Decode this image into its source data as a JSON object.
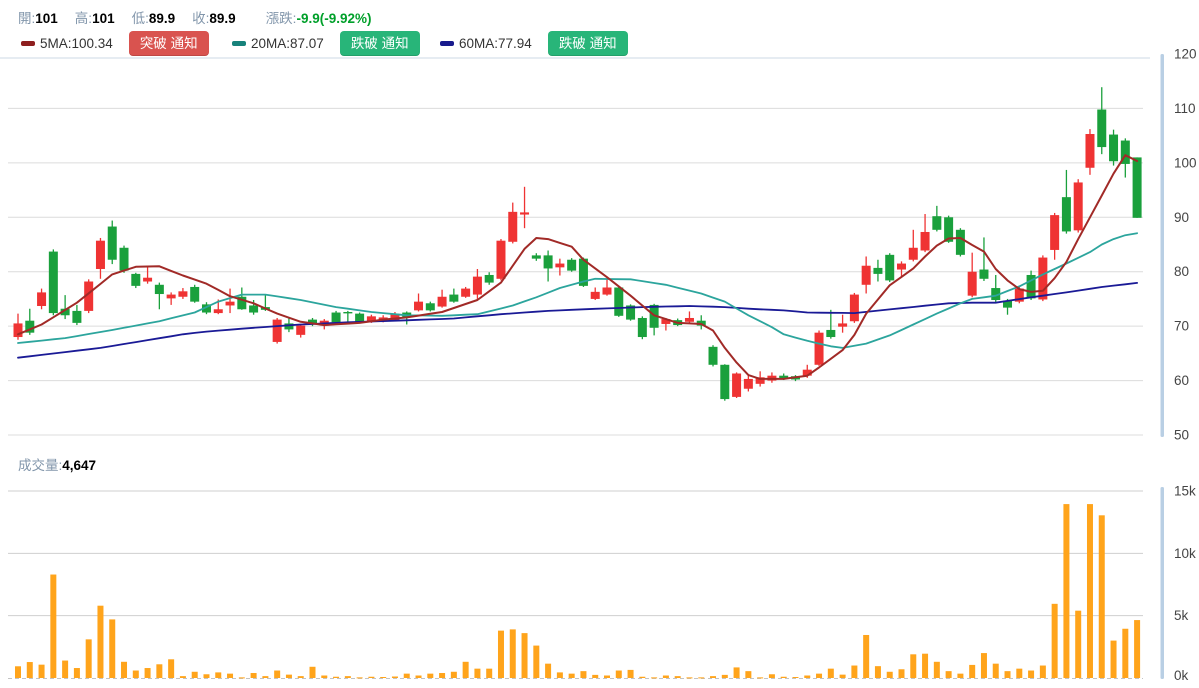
{
  "header": {
    "open_label": "開:",
    "open_value": "101",
    "high_label": "高:",
    "high_value": "101",
    "low_label": "低:",
    "low_value": "89.9",
    "close_label": "收:",
    "close_value": "89.9",
    "change_label": "漲跌:",
    "change_value": "-9.9(-9.92%)"
  },
  "legend": {
    "ma5_label": "5MA:100.34",
    "ma5_alert": "突破 通知",
    "ma20_label": "20MA:87.07",
    "ma20_alert": "跌破 通知",
    "ma60_label": "60MA:77.94",
    "ma60_alert": "跌破 通知"
  },
  "volume": {
    "label": "成交量:",
    "value": "4,647"
  },
  "colors": {
    "up": "#ef3333",
    "down": "#1aa03c",
    "ma5": "#a12a27",
    "ma20": "#2ca59d",
    "ma60": "#1a1a96",
    "ma5_swatch": "#8e1f1f",
    "ma20_swatch": "#17827b",
    "ma60_swatch": "#181a8d",
    "volume_bar": "#ffa41b",
    "btn_breakout": "#d9534f",
    "btn_breakdown": "#28b579",
    "label_blue": "#8296ab",
    "change_green": "#00a02a",
    "grid": "#dcdcdc",
    "grid_vol": "#cfcfcf",
    "baseline_dash": "#c3c3c3",
    "axis_strip": "#b9cfe4",
    "tick_text": "#444444",
    "separator": "#ccd9e4"
  },
  "chart_data": {
    "type": "candlestick+volume",
    "title": "",
    "price_axis": {
      "ticks": [
        120,
        110,
        100,
        90,
        80,
        70,
        60,
        50
      ],
      "min": 50,
      "max": 120,
      "grid": true,
      "position": "right"
    },
    "volume_axis": {
      "ticks": [
        "15k",
        "10k",
        "5k",
        "0k"
      ],
      "tick_values": [
        15,
        10,
        5,
        0
      ],
      "min": 0,
      "max": 15,
      "unit": "thousand_shares",
      "position": "right"
    },
    "last_values": {
      "open": 101,
      "high": 101,
      "low": 89.9,
      "close": 89.9,
      "change": -9.9,
      "change_pct": -9.92,
      "volume": 4647,
      "ma5": 100.34,
      "ma20": 87.07,
      "ma60": 77.94
    },
    "candles_format": [
      "open",
      "high",
      "low",
      "close",
      "volume_k"
    ],
    "candles": [
      [
        68.0,
        72.3,
        67.5,
        70.5,
        0.94
      ],
      [
        71.0,
        73.2,
        68.4,
        68.8,
        1.28
      ],
      [
        73.7,
        76.9,
        73.1,
        76.2,
        1.07
      ],
      [
        83.7,
        84.1,
        72.0,
        72.4,
        8.3
      ],
      [
        73.2,
        75.7,
        71.3,
        72.0,
        1.4
      ],
      [
        72.8,
        73.9,
        70.2,
        70.6,
        0.8
      ],
      [
        72.8,
        78.6,
        72.4,
        78.2,
        3.1
      ],
      [
        80.5,
        86.2,
        78.7,
        85.7,
        5.8
      ],
      [
        88.3,
        89.4,
        81.4,
        82.2,
        4.7
      ],
      [
        84.4,
        84.8,
        79.8,
        80.2,
        1.3
      ],
      [
        79.6,
        79.8,
        77.0,
        77.4,
        0.6
      ],
      [
        78.2,
        80.9,
        77.8,
        78.9,
        0.8
      ],
      [
        77.6,
        78.0,
        73.1,
        75.9,
        1.1
      ],
      [
        75.1,
        76.2,
        73.9,
        75.8,
        1.5
      ],
      [
        75.4,
        77.0,
        75.0,
        76.4,
        0.15
      ],
      [
        77.2,
        77.6,
        74.3,
        74.5,
        0.5
      ],
      [
        74.0,
        74.4,
        72.2,
        72.5,
        0.3
      ],
      [
        72.4,
        74.9,
        72.2,
        73.1,
        0.45
      ],
      [
        73.8,
        76.9,
        72.4,
        74.5,
        0.35
      ],
      [
        75.4,
        77.1,
        73.0,
        73.1,
        0.05
      ],
      [
        73.8,
        74.8,
        72.1,
        72.5,
        0.4
      ],
      [
        73.5,
        75.7,
        72.8,
        73.0,
        0.15
      ],
      [
        67.1,
        71.5,
        66.8,
        71.2,
        0.6
      ],
      [
        70.5,
        71.6,
        68.9,
        69.4,
        0.27
      ],
      [
        68.4,
        70.4,
        67.9,
        70.1,
        0.15
      ],
      [
        71.2,
        71.5,
        70.0,
        70.3,
        0.9
      ],
      [
        70.1,
        71.3,
        69.4,
        71.0,
        0.2
      ],
      [
        72.5,
        72.8,
        70.5,
        70.7,
        0.1
      ],
      [
        72.6,
        72.8,
        70.8,
        72.4,
        0.15
      ],
      [
        72.3,
        72.5,
        70.5,
        70.7,
        0.05
      ],
      [
        70.9,
        72.1,
        70.6,
        71.8,
        0.1
      ],
      [
        71.0,
        72.0,
        70.7,
        71.6,
        0.08
      ],
      [
        71.1,
        72.6,
        70.9,
        72.3,
        0.12
      ],
      [
        72.5,
        72.7,
        70.3,
        71.6,
        0.35
      ],
      [
        72.9,
        76.0,
        72.7,
        74.5,
        0.2
      ],
      [
        74.2,
        74.5,
        72.7,
        72.9,
        0.35
      ],
      [
        73.6,
        76.7,
        73.4,
        75.4,
        0.4
      ],
      [
        75.8,
        76.9,
        74.3,
        74.5,
        0.5
      ],
      [
        75.4,
        77.2,
        75.2,
        76.9,
        1.3
      ],
      [
        75.8,
        80.5,
        75.0,
        79.1,
        0.75
      ],
      [
        79.4,
        79.9,
        77.6,
        78.0,
        0.75
      ],
      [
        78.7,
        86.0,
        78.4,
        85.7,
        3.8
      ],
      [
        85.5,
        92.7,
        85.2,
        91.0,
        3.9
      ],
      [
        90.5,
        95.6,
        88.0,
        90.9,
        3.6
      ],
      [
        83.0,
        83.4,
        82.0,
        82.4,
        2.6
      ],
      [
        83.0,
        83.9,
        78.2,
        80.6,
        1.15
      ],
      [
        80.8,
        82.4,
        79.3,
        81.5,
        0.45
      ],
      [
        82.2,
        82.5,
        80.0,
        80.2,
        0.35
      ],
      [
        82.4,
        82.6,
        77.2,
        77.4,
        0.55
      ],
      [
        75.0,
        77.1,
        74.8,
        76.3,
        0.25
      ],
      [
        75.8,
        78.7,
        75.6,
        77.1,
        0.2
      ],
      [
        77.1,
        77.3,
        71.7,
        71.9,
        0.6
      ],
      [
        73.8,
        74.0,
        71.0,
        71.2,
        0.65
      ],
      [
        71.5,
        71.8,
        67.6,
        68.0,
        0.1
      ],
      [
        73.9,
        74.1,
        68.3,
        69.7,
        0.05
      ],
      [
        70.4,
        71.5,
        69.2,
        71.3,
        0.2
      ],
      [
        71.1,
        71.4,
        70.0,
        70.2,
        0.15
      ],
      [
        70.8,
        72.7,
        70.5,
        71.5,
        0.05
      ],
      [
        71.0,
        72.0,
        69.4,
        70.1,
        0.05
      ],
      [
        66.2,
        66.5,
        62.6,
        62.9,
        0.15
      ],
      [
        62.9,
        63.0,
        56.3,
        56.6,
        0.25
      ],
      [
        57.0,
        61.5,
        56.8,
        61.3,
        0.85
      ],
      [
        58.5,
        60.9,
        58.0,
        60.3,
        0.55
      ],
      [
        59.4,
        61.7,
        58.9,
        60.6,
        0.05
      ],
      [
        60.0,
        61.5,
        59.6,
        60.9,
        0.3
      ],
      [
        60.9,
        61.3,
        60.1,
        60.4,
        0.1
      ],
      [
        60.8,
        61.0,
        59.9,
        60.2,
        0.08
      ],
      [
        60.9,
        62.9,
        60.5,
        62.0,
        0.2
      ],
      [
        62.9,
        69.2,
        62.7,
        68.8,
        0.35
      ],
      [
        69.3,
        73.0,
        67.7,
        68.0,
        0.75
      ],
      [
        69.9,
        72.1,
        68.8,
        70.5,
        0.27
      ],
      [
        70.9,
        76.1,
        70.6,
        75.8,
        1.0
      ],
      [
        77.6,
        82.8,
        76.0,
        81.1,
        3.45
      ],
      [
        80.7,
        82.2,
        78.2,
        79.6,
        0.95
      ],
      [
        83.1,
        83.4,
        78.1,
        78.4,
        0.5
      ],
      [
        80.4,
        81.9,
        79.1,
        81.5,
        0.7
      ],
      [
        82.2,
        87.7,
        81.9,
        84.4,
        1.9
      ],
      [
        83.9,
        90.6,
        83.6,
        87.3,
        1.95
      ],
      [
        90.2,
        92.1,
        87.4,
        87.7,
        1.3
      ],
      [
        90.0,
        90.3,
        85.3,
        85.5,
        0.55
      ],
      [
        87.7,
        88.0,
        82.8,
        83.1,
        0.35
      ],
      [
        75.6,
        83.5,
        75.3,
        80.0,
        1.05
      ],
      [
        80.4,
        86.3,
        78.3,
        78.7,
        2.0
      ],
      [
        77.0,
        79.4,
        74.3,
        74.8,
        1.15
      ],
      [
        74.7,
        75.0,
        72.1,
        73.4,
        0.55
      ],
      [
        74.5,
        77.2,
        74.2,
        76.9,
        0.75
      ],
      [
        79.4,
        80.2,
        74.8,
        75.1,
        0.6
      ],
      [
        74.9,
        83.0,
        74.6,
        82.6,
        1.0
      ],
      [
        84.0,
        90.8,
        82.2,
        90.4,
        5.95
      ],
      [
        93.7,
        98.7,
        87.0,
        87.4,
        13.95
      ],
      [
        87.6,
        97.0,
        87.2,
        96.4,
        5.4
      ],
      [
        99.1,
        106.2,
        97.8,
        105.3,
        13.95
      ],
      [
        109.8,
        113.9,
        101.6,
        102.9,
        13.05
      ],
      [
        105.2,
        106.1,
        99.5,
        100.3,
        3.0
      ],
      [
        104.1,
        104.5,
        97.3,
        99.8,
        3.95
      ],
      [
        101.0,
        101.0,
        89.9,
        89.9,
        4.647
      ]
    ],
    "ma5_anchors": [
      [
        1,
        68.5
      ],
      [
        3,
        70.3
      ],
      [
        6,
        74.3
      ],
      [
        9,
        79.5
      ],
      [
        11,
        80.9
      ],
      [
        13,
        81.0
      ],
      [
        15,
        79.3
      ],
      [
        17,
        77.8
      ],
      [
        19,
        75.5
      ],
      [
        21,
        74.2
      ],
      [
        23,
        72.3
      ],
      [
        25,
        70.8
      ],
      [
        27,
        70.2
      ],
      [
        30,
        70.6
      ],
      [
        32,
        71.2
      ],
      [
        34,
        71.6
      ],
      [
        37,
        72.6
      ],
      [
        40,
        74.8
      ],
      [
        42,
        78.0
      ],
      [
        44,
        84.2
      ],
      [
        45,
        86.2
      ],
      [
        46,
        86.0
      ],
      [
        48,
        84.6
      ],
      [
        49,
        82.2
      ],
      [
        51,
        79.0
      ],
      [
        53,
        75.6
      ],
      [
        55,
        72.0
      ],
      [
        57,
        70.6
      ],
      [
        59,
        70.4
      ],
      [
        60,
        69.2
      ],
      [
        61,
        66.0
      ],
      [
        62,
        63.3
      ],
      [
        63,
        61.0
      ],
      [
        64,
        60.3
      ],
      [
        66,
        60.3
      ],
      [
        68,
        60.9
      ],
      [
        69,
        62.4
      ],
      [
        71,
        65.6
      ],
      [
        72,
        68.4
      ],
      [
        73,
        72.3
      ],
      [
        75,
        77.5
      ],
      [
        77,
        80.6
      ],
      [
        78,
        82.8
      ],
      [
        79,
        84.8
      ],
      [
        80,
        86.1
      ],
      [
        81,
        86.2
      ],
      [
        82,
        84.9
      ],
      [
        83,
        83.7
      ],
      [
        84,
        80.5
      ],
      [
        85,
        78.4
      ],
      [
        86,
        76.8
      ],
      [
        87,
        76.3
      ],
      [
        88,
        76.5
      ],
      [
        89,
        78.8
      ],
      [
        90,
        81.8
      ],
      [
        91,
        86.0
      ],
      [
        92,
        90.0
      ],
      [
        93,
        94.0
      ],
      [
        94,
        98.0
      ],
      [
        95,
        101.4
      ],
      [
        96,
        100.34
      ]
    ],
    "ma20_anchors": [
      [
        1,
        66.9
      ],
      [
        5,
        67.8
      ],
      [
        9,
        69.3
      ],
      [
        13,
        70.9
      ],
      [
        16,
        72.5
      ],
      [
        18,
        74.5
      ],
      [
        20,
        75.8
      ],
      [
        22,
        75.8
      ],
      [
        25,
        74.8
      ],
      [
        28,
        73.5
      ],
      [
        31,
        72.6
      ],
      [
        34,
        72.0
      ],
      [
        37,
        71.9
      ],
      [
        40,
        72.2
      ],
      [
        41,
        72.7
      ],
      [
        43,
        73.8
      ],
      [
        45,
        75.3
      ],
      [
        47,
        77.0
      ],
      [
        49,
        78.2
      ],
      [
        50,
        78.7
      ],
      [
        53,
        78.6
      ],
      [
        56,
        77.6
      ],
      [
        59,
        76.0
      ],
      [
        61,
        74.5
      ],
      [
        63,
        72.0
      ],
      [
        65,
        69.8
      ],
      [
        66,
        68.5
      ],
      [
        68,
        67.3
      ],
      [
        70,
        66.3
      ],
      [
        71,
        66.0
      ],
      [
        73,
        66.8
      ],
      [
        75,
        68.3
      ],
      [
        77,
        70.3
      ],
      [
        79,
        72.3
      ],
      [
        81,
        74.2
      ],
      [
        82,
        75.0
      ],
      [
        84,
        75.6
      ],
      [
        86,
        77.3
      ],
      [
        88,
        79.5
      ],
      [
        90,
        81.5
      ],
      [
        92,
        83.6
      ],
      [
        93,
        85.0
      ],
      [
        94,
        86.0
      ],
      [
        95,
        86.7
      ],
      [
        96,
        87.07
      ]
    ],
    "ma60_anchors": [
      [
        1,
        64.2
      ],
      [
        8,
        66.0
      ],
      [
        15,
        68.5
      ],
      [
        17,
        69.0
      ],
      [
        21,
        69.7
      ],
      [
        25,
        70.3
      ],
      [
        29,
        70.7
      ],
      [
        33,
        71.0
      ],
      [
        38,
        71.4
      ],
      [
        42,
        72.2
      ],
      [
        46,
        72.8
      ],
      [
        49,
        73.1
      ],
      [
        54,
        73.5
      ],
      [
        58,
        73.7
      ],
      [
        61,
        73.5
      ],
      [
        63,
        73.2
      ],
      [
        66,
        72.9
      ],
      [
        68,
        72.5
      ],
      [
        72,
        72.4
      ],
      [
        76,
        73.3
      ],
      [
        80,
        74.2
      ],
      [
        82,
        74.3
      ],
      [
        84,
        74.3
      ],
      [
        87,
        75.3
      ],
      [
        90,
        76.2
      ],
      [
        93,
        77.2
      ],
      [
        96,
        77.94
      ]
    ]
  }
}
